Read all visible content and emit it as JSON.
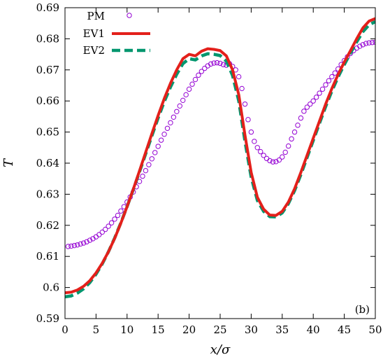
{
  "chart_data": {
    "type": "line",
    "xlabel": "x/σ",
    "ylabel": "T",
    "xlim": [
      0,
      50
    ],
    "ylim": [
      0.59,
      0.69
    ],
    "xticks": [
      0,
      5,
      10,
      15,
      20,
      25,
      30,
      35,
      40,
      45,
      50
    ],
    "xtick_labels": [
      "0",
      "5",
      "10",
      "15",
      "20",
      "25",
      "30",
      "35",
      "40",
      "45",
      "50"
    ],
    "yticks": [
      0.59,
      0.6,
      0.61,
      0.62,
      0.63,
      0.64,
      0.65,
      0.66,
      0.67,
      0.68,
      0.69
    ],
    "ytick_labels": [
      "0.59",
      "0.6",
      "0.61",
      "0.62",
      "0.63",
      "0.64",
      "0.65",
      "0.66",
      "0.67",
      "0.68",
      "0.69"
    ],
    "grid": false,
    "legend_position": "top-left",
    "annotation": "(b)",
    "series": [
      {
        "name": "PM",
        "style": "markers",
        "color": "#9400d3",
        "points": [
          [
            0.5,
            0.6132
          ],
          [
            1.0,
            0.6133
          ],
          [
            1.5,
            0.6135
          ],
          [
            2.0,
            0.6137
          ],
          [
            2.5,
            0.614
          ],
          [
            3.0,
            0.6143
          ],
          [
            3.5,
            0.6147
          ],
          [
            4.0,
            0.6152
          ],
          [
            4.5,
            0.6157
          ],
          [
            5.0,
            0.6163
          ],
          [
            5.5,
            0.617
          ],
          [
            6.0,
            0.6178
          ],
          [
            6.5,
            0.6187
          ],
          [
            7.0,
            0.6197
          ],
          [
            7.5,
            0.6208
          ],
          [
            8.0,
            0.622
          ],
          [
            8.5,
            0.6232
          ],
          [
            9.0,
            0.6246
          ],
          [
            9.5,
            0.626
          ],
          [
            10.0,
            0.6275
          ],
          [
            10.5,
            0.6291
          ],
          [
            11.0,
            0.6307
          ],
          [
            11.5,
            0.6324
          ],
          [
            12.0,
            0.6341
          ],
          [
            12.5,
            0.6358
          ],
          [
            13.0,
            0.6376
          ],
          [
            13.5,
            0.6395
          ],
          [
            14.0,
            0.6414
          ],
          [
            14.5,
            0.6434
          ],
          [
            15.0,
            0.6454
          ],
          [
            15.5,
            0.6474
          ],
          [
            16.0,
            0.6493
          ],
          [
            16.5,
            0.6512
          ],
          [
            17.0,
            0.653
          ],
          [
            17.5,
            0.6548
          ],
          [
            18.0,
            0.6566
          ],
          [
            18.5,
            0.6584
          ],
          [
            19.0,
            0.6602
          ],
          [
            19.5,
            0.662
          ],
          [
            20.0,
            0.6638
          ],
          [
            20.5,
            0.6654
          ],
          [
            21.0,
            0.6669
          ],
          [
            21.5,
            0.6683
          ],
          [
            22.0,
            0.6695
          ],
          [
            22.5,
            0.6705
          ],
          [
            23.0,
            0.6713
          ],
          [
            23.5,
            0.6719
          ],
          [
            24.0,
            0.6722
          ],
          [
            24.5,
            0.6723
          ],
          [
            25.0,
            0.6721
          ],
          [
            25.5,
            0.6717
          ],
          [
            26.0,
            0.6715
          ],
          [
            26.5,
            0.672
          ],
          [
            27.0,
            0.6711
          ],
          [
            27.5,
            0.67
          ],
          [
            28.0,
            0.6678
          ],
          [
            28.5,
            0.664
          ],
          [
            29.0,
            0.659
          ],
          [
            29.5,
            0.654
          ],
          [
            30.0,
            0.65
          ],
          [
            30.5,
            0.647
          ],
          [
            31.0,
            0.645
          ],
          [
            31.5,
            0.6437
          ],
          [
            32.0,
            0.6425
          ],
          [
            32.5,
            0.6415
          ],
          [
            33.0,
            0.6408
          ],
          [
            33.5,
            0.6404
          ],
          [
            34.0,
            0.6405
          ],
          [
            34.5,
            0.641
          ],
          [
            35.0,
            0.642
          ],
          [
            35.5,
            0.6435
          ],
          [
            36.0,
            0.6455
          ],
          [
            36.5,
            0.6478
          ],
          [
            37.0,
            0.65
          ],
          [
            37.5,
            0.6522
          ],
          [
            38.0,
            0.6545
          ],
          [
            38.5,
            0.6567
          ],
          [
            39.0,
            0.658
          ],
          [
            39.5,
            0.659
          ],
          [
            40.0,
            0.66
          ],
          [
            40.5,
            0.6612
          ],
          [
            41.0,
            0.6625
          ],
          [
            41.5,
            0.6638
          ],
          [
            42.0,
            0.6652
          ],
          [
            42.5,
            0.6665
          ],
          [
            43.0,
            0.6678
          ],
          [
            43.5,
            0.669
          ],
          [
            44.0,
            0.6703
          ],
          [
            44.5,
            0.6717
          ],
          [
            45.0,
            0.673
          ],
          [
            45.5,
            0.6742
          ],
          [
            46.0,
            0.6753
          ],
          [
            46.5,
            0.6762
          ],
          [
            47.0,
            0.677
          ],
          [
            47.5,
            0.6776
          ],
          [
            48.0,
            0.6781
          ],
          [
            48.5,
            0.6785
          ],
          [
            49.0,
            0.6787
          ],
          [
            49.5,
            0.6788
          ],
          [
            50.0,
            0.6789
          ]
        ]
      },
      {
        "name": "EV1",
        "style": "solid",
        "color": "#e3201b",
        "points": [
          [
            0,
            0.5983
          ],
          [
            1,
            0.5985
          ],
          [
            2,
            0.5992
          ],
          [
            3,
            0.6004
          ],
          [
            4,
            0.6022
          ],
          [
            5,
            0.6047
          ],
          [
            6,
            0.6078
          ],
          [
            7,
            0.6115
          ],
          [
            8,
            0.6158
          ],
          [
            9,
            0.6207
          ],
          [
            10,
            0.626
          ],
          [
            11,
            0.6316
          ],
          [
            12,
            0.6375
          ],
          [
            13,
            0.6435
          ],
          [
            14,
            0.6495
          ],
          [
            15,
            0.6553
          ],
          [
            16,
            0.6608
          ],
          [
            17,
            0.6657
          ],
          [
            18,
            0.67
          ],
          [
            19,
            0.6736
          ],
          [
            20,
            0.675
          ],
          [
            21,
            0.6745
          ],
          [
            22,
            0.676
          ],
          [
            23,
            0.6768
          ],
          [
            24,
            0.6766
          ],
          [
            25,
            0.6762
          ],
          [
            26,
            0.6745
          ],
          [
            27,
            0.67
          ],
          [
            28,
            0.662
          ],
          [
            29,
            0.649
          ],
          [
            30,
            0.637
          ],
          [
            31,
            0.629
          ],
          [
            32,
            0.6252
          ],
          [
            33,
            0.6233
          ],
          [
            34,
            0.6232
          ],
          [
            35,
            0.6245
          ],
          [
            36,
            0.6275
          ],
          [
            37,
            0.6318
          ],
          [
            38,
            0.637
          ],
          [
            39,
            0.6425
          ],
          [
            40,
            0.648
          ],
          [
            41,
            0.6535
          ],
          [
            42,
            0.659
          ],
          [
            43,
            0.664
          ],
          [
            44,
            0.6685
          ],
          [
            45,
            0.6725
          ],
          [
            46,
            0.6762
          ],
          [
            47,
            0.68
          ],
          [
            48,
            0.6835
          ],
          [
            49,
            0.6857
          ],
          [
            50,
            0.6865
          ]
        ]
      },
      {
        "name": "EV2",
        "style": "dashed",
        "color": "#00966e",
        "points": [
          [
            0,
            0.597
          ],
          [
            1,
            0.5973
          ],
          [
            2,
            0.5982
          ],
          [
            3,
            0.5996
          ],
          [
            4,
            0.6016
          ],
          [
            5,
            0.6043
          ],
          [
            6,
            0.6076
          ],
          [
            7,
            0.6115
          ],
          [
            8,
            0.6159
          ],
          [
            9,
            0.6208
          ],
          [
            10,
            0.626
          ],
          [
            11,
            0.6315
          ],
          [
            12,
            0.6372
          ],
          [
            13,
            0.643
          ],
          [
            14,
            0.6488
          ],
          [
            15,
            0.6545
          ],
          [
            16,
            0.6598
          ],
          [
            17,
            0.6645
          ],
          [
            18,
            0.6686
          ],
          [
            19,
            0.672
          ],
          [
            20,
            0.6736
          ],
          [
            21,
            0.6732
          ],
          [
            22,
            0.6745
          ],
          [
            23,
            0.6752
          ],
          [
            24,
            0.675
          ],
          [
            25,
            0.6746
          ],
          [
            26,
            0.6728
          ],
          [
            27,
            0.6682
          ],
          [
            28,
            0.66
          ],
          [
            29,
            0.647
          ],
          [
            30,
            0.6355
          ],
          [
            31,
            0.628
          ],
          [
            32,
            0.6245
          ],
          [
            33,
            0.6228
          ],
          [
            34,
            0.6227
          ],
          [
            35,
            0.624
          ],
          [
            36,
            0.627
          ],
          [
            37,
            0.6312
          ],
          [
            38,
            0.6363
          ],
          [
            39,
            0.6418
          ],
          [
            40,
            0.6473
          ],
          [
            41,
            0.6528
          ],
          [
            42,
            0.6582
          ],
          [
            43,
            0.6632
          ],
          [
            44,
            0.6677
          ],
          [
            45,
            0.6717
          ],
          [
            46,
            0.6754
          ],
          [
            47,
            0.679
          ],
          [
            48,
            0.6823
          ],
          [
            49,
            0.6845
          ],
          [
            50,
            0.6855
          ]
        ]
      }
    ]
  }
}
